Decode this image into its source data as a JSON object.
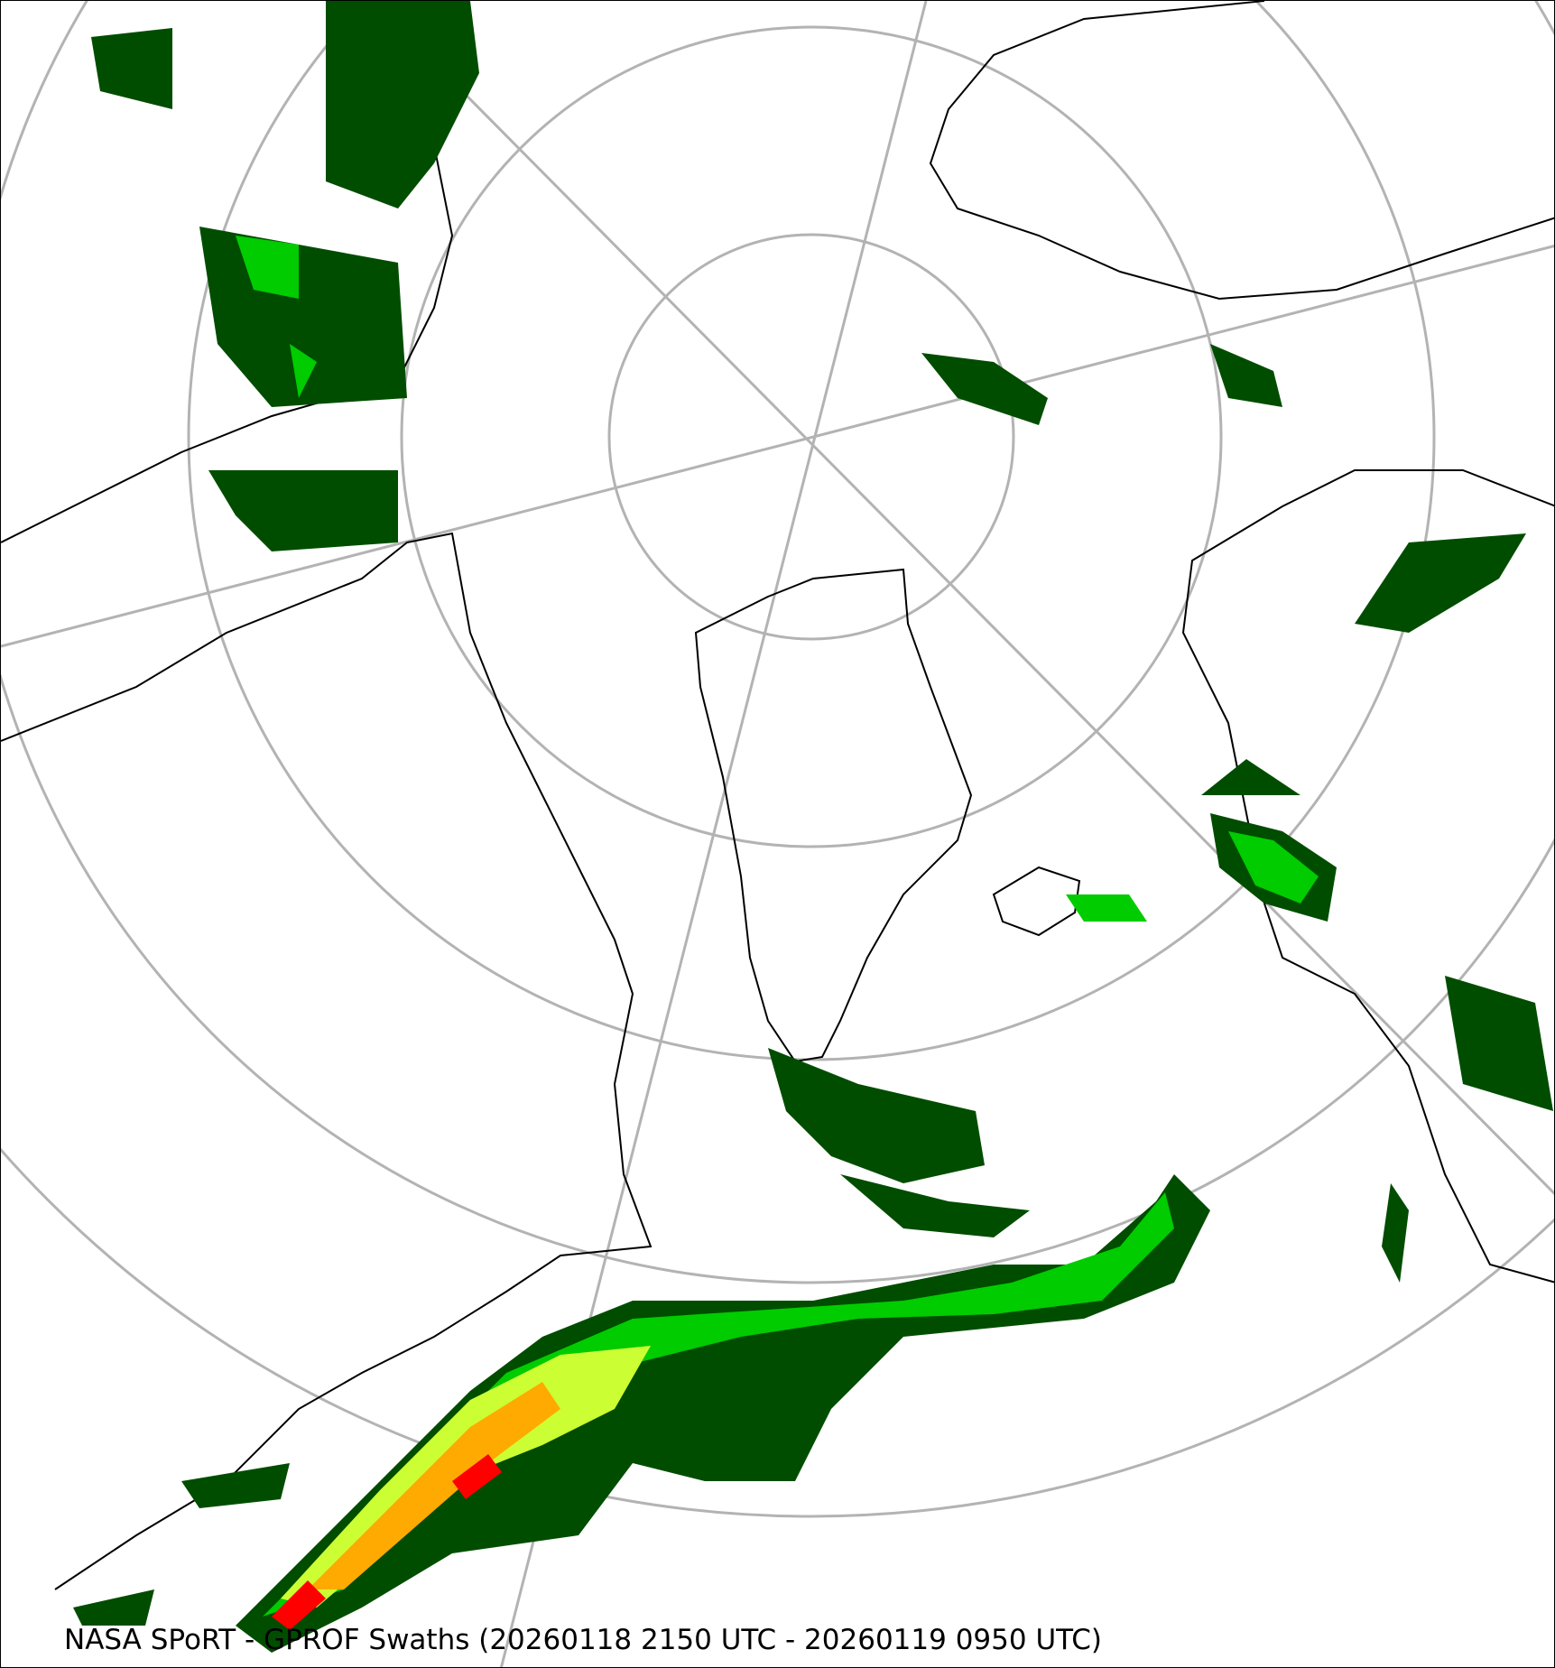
{
  "caption": "NASA SPoRT - GPROF Swaths (20260118 2150 UTC - 20260119 0950 UTC)",
  "map": {
    "projection": "north-polar-stereographic",
    "graticule_color": "#b3b3b3",
    "coastline_color": "#000000",
    "precip_colors": [
      "#004d00",
      "#007a00",
      "#00cc00",
      "#33ff33",
      "#ccff33",
      "#ffff00",
      "#ffaa00",
      "#ff5500",
      "#ff0000"
    ]
  }
}
